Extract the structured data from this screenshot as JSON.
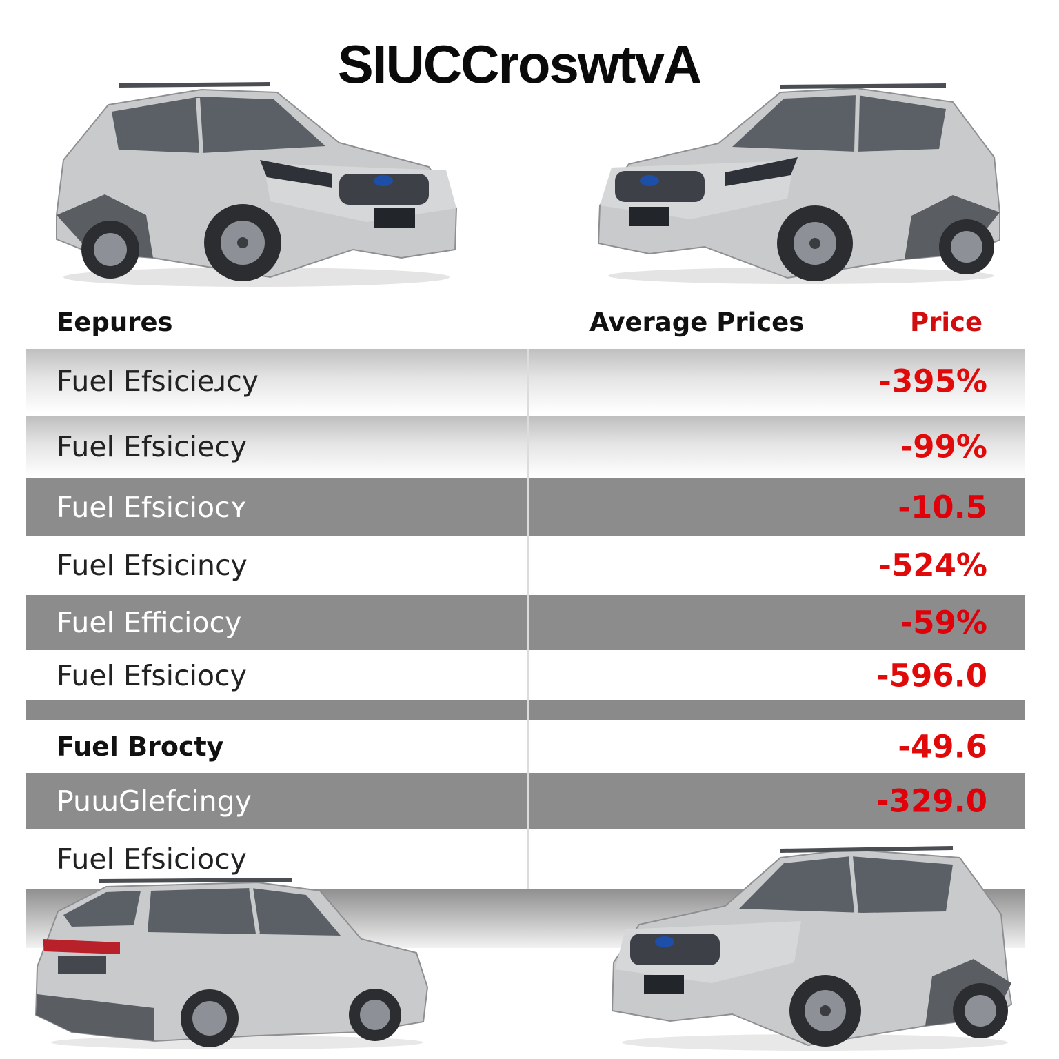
{
  "title": "SIUCCroswtvA",
  "headers": {
    "features": "Eepures",
    "average": "Average Prices",
    "price": "Price"
  },
  "rows": [
    {
      "label": "Fuel Efsicieɹcy",
      "value": "-395%",
      "style": "fade"
    },
    {
      "label": "Fuel Efsiciecy",
      "value": "-99%",
      "style": "fade"
    },
    {
      "label": "Fuel Efsiciocʏ",
      "value": "-10.5",
      "style": "dark"
    },
    {
      "label": "Fuel Efsicincy",
      "value": "-524%",
      "style": "white"
    },
    {
      "label": "Fuel Efficiocy",
      "value": "-59%",
      "style": "dark"
    },
    {
      "label": "Fuel Efsiciocy",
      "value": "-596.0",
      "style": "white"
    },
    {
      "label": "Fuel Brocty",
      "value": "-49.6",
      "style": "white-bold"
    },
    {
      "label": "PuɯGlefcingy",
      "value": "-329.0",
      "style": "dark"
    },
    {
      "label": "Fuel Efsiciocy",
      "value": "",
      "style": "white"
    }
  ],
  "images": [
    {
      "name": "car-front-three-quarter-left",
      "icon": "suv-silver"
    },
    {
      "name": "car-front-three-quarter-right",
      "icon": "suv-silver"
    },
    {
      "name": "car-rear-three-quarter",
      "icon": "suv-silver"
    },
    {
      "name": "car-front-three-quarter-bottom-right",
      "icon": "suv-silver"
    }
  ],
  "colors": {
    "accent_red": "#e00a0a",
    "row_dark": "#8c8c8c",
    "car_body": "#c9cacc"
  }
}
